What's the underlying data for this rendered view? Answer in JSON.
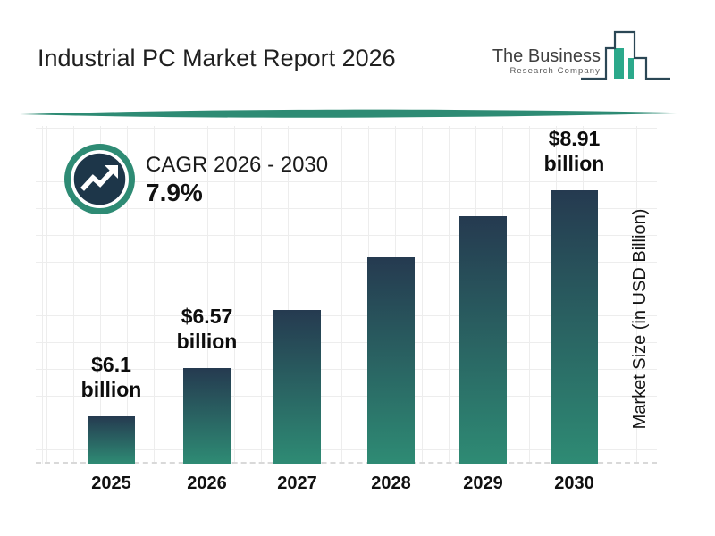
{
  "header": {
    "title": "Industrial PC Market Report 2026",
    "logo": {
      "company_name": "The Business",
      "company_subtitle": "Research Company"
    }
  },
  "cagr": {
    "label": "CAGR 2026 - 2030",
    "value": "7.9%"
  },
  "chart_data": {
    "type": "bar",
    "title": "Industrial PC Market Report 2026",
    "xlabel": "",
    "ylabel": "Market Size (in USD Billion)",
    "categories": [
      "2025",
      "2026",
      "2027",
      "2028",
      "2029",
      "2030"
    ],
    "values": [
      6.1,
      6.57,
      7.09,
      7.65,
      8.26,
      8.91
    ],
    "bar_labels": [
      "$6.1 billion",
      "$6.57 billion",
      null,
      null,
      null,
      "$8.91 billion"
    ],
    "grid": true,
    "legend": false,
    "colors": {
      "bar_top": "#253A50",
      "bar_bottom": "#2E8B74",
      "accent_teal": "#2E8B74",
      "badge_navy": "#1D3649",
      "divider": "#2A8571"
    }
  }
}
